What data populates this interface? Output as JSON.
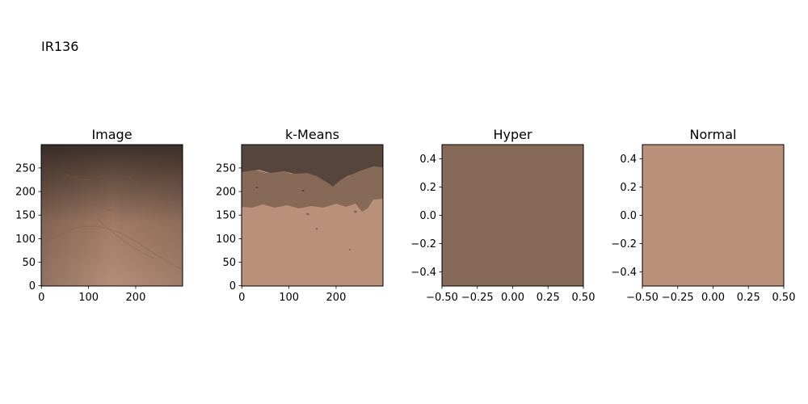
{
  "figure": {
    "title": "IR136"
  },
  "chart_data": [
    {
      "type": "heatmap",
      "title": "Image",
      "x_ticks": [
        "0",
        "100",
        "200"
      ],
      "y_ticks": [
        "0",
        "50",
        "100",
        "150",
        "200",
        "250"
      ],
      "xlim": [
        -0.5,
        299.5
      ],
      "ylim": [
        299.5,
        -0.5
      ],
      "content": "skin photo",
      "colors": {
        "dark": "#4a3a30",
        "mid": "#6e5648",
        "light": "#b48c76"
      }
    },
    {
      "type": "heatmap",
      "title": "k-Means",
      "x_ticks": [
        "0",
        "100",
        "200"
      ],
      "y_ticks": [
        "0",
        "50",
        "100",
        "150",
        "200",
        "250"
      ],
      "xlim": [
        -0.5,
        299.5
      ],
      "ylim": [
        299.5,
        -0.5
      ],
      "clusters": [
        {
          "color": "#55453b",
          "region": "top"
        },
        {
          "color": "#876958",
          "region": "middle"
        },
        {
          "color": "#b9917a",
          "region": "bottom"
        }
      ]
    },
    {
      "type": "heatmap",
      "title": "Hyper",
      "x_ticks": [
        "−0.50",
        "−0.25",
        "0.00",
        "0.25",
        "0.50"
      ],
      "y_ticks": [
        "−0.4",
        "−0.2",
        "0.0",
        "0.2",
        "0.4"
      ],
      "xlim": [
        -0.5,
        0.5
      ],
      "ylim": [
        0.5,
        -0.5
      ],
      "fill_color": "#876958"
    },
    {
      "type": "heatmap",
      "title": "Normal",
      "x_ticks": [
        "−0.50",
        "−0.25",
        "0.00",
        "0.25",
        "0.50"
      ],
      "y_ticks": [
        "−0.4",
        "−0.2",
        "0.0",
        "0.2",
        "0.4"
      ],
      "xlim": [
        -0.5,
        0.5
      ],
      "ylim": [
        0.5,
        -0.5
      ],
      "fill_color": "#b9917a"
    }
  ]
}
